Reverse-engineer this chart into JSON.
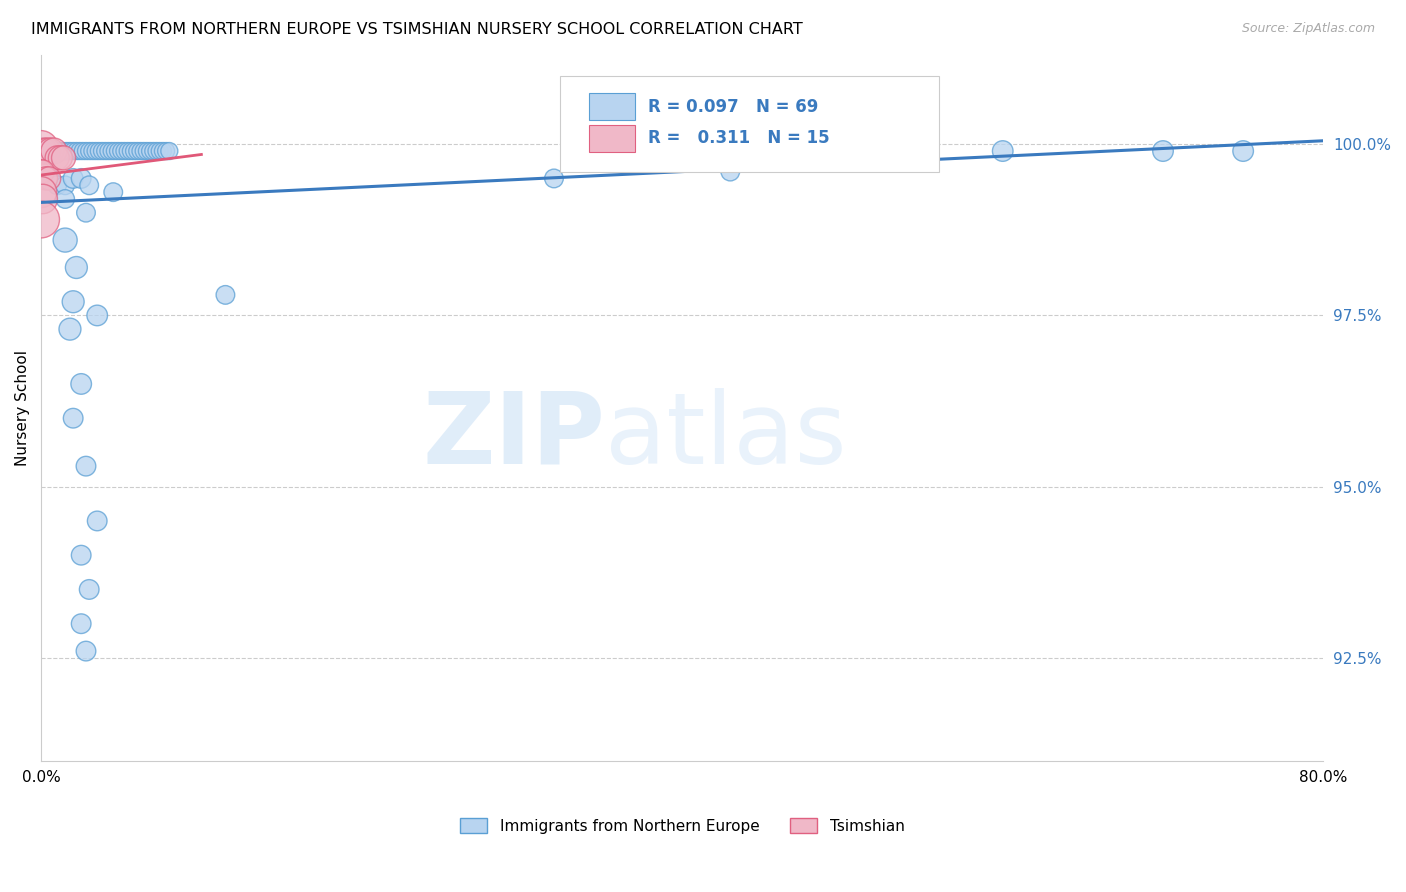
{
  "title": "IMMIGRANTS FROM NORTHERN EUROPE VS TSIMSHIAN NURSERY SCHOOL CORRELATION CHART",
  "source": "Source: ZipAtlas.com",
  "ylabel": "Nursery School",
  "xlim": [
    0.0,
    80.0
  ],
  "ylim": [
    91.0,
    101.3
  ],
  "yticks": [
    92.5,
    95.0,
    97.5,
    100.0
  ],
  "ytick_labels": [
    "92.5%",
    "95.0%",
    "97.5%",
    "100.0%"
  ],
  "xticks": [
    0.0,
    10.0,
    20.0,
    30.0,
    40.0,
    50.0,
    60.0,
    70.0,
    80.0
  ],
  "xtick_labels": [
    "0.0%",
    "",
    "",
    "",
    "",
    "",
    "",
    "",
    "80.0%"
  ],
  "watermark_zip": "ZIP",
  "watermark_atlas": "atlas",
  "legend_blue_label": "Immigrants from Northern Europe",
  "legend_pink_label": "Tsimshian",
  "R_blue": 0.097,
  "N_blue": 69,
  "R_pink": 0.311,
  "N_pink": 15,
  "blue_fill": "#b8d4f0",
  "blue_edge": "#5a9fd4",
  "pink_fill": "#f0b8c8",
  "pink_edge": "#e06080",
  "blue_line_color": "#3a7abf",
  "pink_line_color": "#e05878",
  "blue_trendline_x": [
    0.0,
    80.0
  ],
  "blue_trendline_y": [
    99.15,
    100.05
  ],
  "pink_trendline_x": [
    0.0,
    10.0
  ],
  "pink_trendline_y": [
    99.55,
    99.85
  ],
  "blue_scatter": [
    [
      0.0,
      99.95
    ],
    [
      0.2,
      99.9
    ],
    [
      0.5,
      99.9
    ],
    [
      0.8,
      99.9
    ],
    [
      1.0,
      99.9
    ],
    [
      1.2,
      99.9
    ],
    [
      1.4,
      99.9
    ],
    [
      1.6,
      99.9
    ],
    [
      1.8,
      99.9
    ],
    [
      2.0,
      99.9
    ],
    [
      2.2,
      99.9
    ],
    [
      2.4,
      99.9
    ],
    [
      2.6,
      99.9
    ],
    [
      2.8,
      99.9
    ],
    [
      3.0,
      99.9
    ],
    [
      3.2,
      99.9
    ],
    [
      3.4,
      99.9
    ],
    [
      3.6,
      99.9
    ],
    [
      3.8,
      99.9
    ],
    [
      4.0,
      99.9
    ],
    [
      4.2,
      99.9
    ],
    [
      4.4,
      99.9
    ],
    [
      4.6,
      99.9
    ],
    [
      4.8,
      99.9
    ],
    [
      5.0,
      99.9
    ],
    [
      5.2,
      99.9
    ],
    [
      5.4,
      99.9
    ],
    [
      5.6,
      99.9
    ],
    [
      5.8,
      99.9
    ],
    [
      6.0,
      99.9
    ],
    [
      6.2,
      99.9
    ],
    [
      6.4,
      99.9
    ],
    [
      6.6,
      99.9
    ],
    [
      6.8,
      99.9
    ],
    [
      7.0,
      99.9
    ],
    [
      7.2,
      99.9
    ],
    [
      7.4,
      99.9
    ],
    [
      7.6,
      99.9
    ],
    [
      7.8,
      99.9
    ],
    [
      8.0,
      99.9
    ],
    [
      0.5,
      99.5
    ],
    [
      1.0,
      99.4
    ],
    [
      1.5,
      99.4
    ],
    [
      2.0,
      99.5
    ],
    [
      2.5,
      99.5
    ],
    [
      3.0,
      99.4
    ],
    [
      4.5,
      99.3
    ],
    [
      1.5,
      99.2
    ],
    [
      2.8,
      99.0
    ],
    [
      1.5,
      98.6
    ],
    [
      2.2,
      98.2
    ],
    [
      2.0,
      97.7
    ],
    [
      1.8,
      97.3
    ],
    [
      3.5,
      97.5
    ],
    [
      2.5,
      96.5
    ],
    [
      2.0,
      96.0
    ],
    [
      2.8,
      95.3
    ],
    [
      3.5,
      94.5
    ],
    [
      2.5,
      94.0
    ],
    [
      3.0,
      93.5
    ],
    [
      2.5,
      93.0
    ],
    [
      2.8,
      92.6
    ],
    [
      11.5,
      97.8
    ],
    [
      32.0,
      99.5
    ],
    [
      43.0,
      99.6
    ],
    [
      50.0,
      99.9
    ],
    [
      60.0,
      99.9
    ],
    [
      70.0,
      99.9
    ],
    [
      75.0,
      99.9
    ]
  ],
  "blue_scatter_sizes": [
    180,
    150,
    150,
    150,
    150,
    150,
    150,
    150,
    150,
    150,
    150,
    150,
    150,
    150,
    150,
    150,
    150,
    150,
    150,
    150,
    150,
    150,
    150,
    150,
    150,
    150,
    150,
    150,
    150,
    150,
    150,
    150,
    150,
    150,
    150,
    150,
    150,
    150,
    150,
    150,
    200,
    180,
    180,
    200,
    200,
    180,
    180,
    180,
    180,
    300,
    250,
    250,
    250,
    220,
    220,
    200,
    200,
    200,
    200,
    200,
    200,
    200,
    180,
    180,
    180,
    200,
    220,
    220,
    220
  ],
  "pink_scatter": [
    [
      0.0,
      99.95
    ],
    [
      0.2,
      99.9
    ],
    [
      0.4,
      99.9
    ],
    [
      0.6,
      99.9
    ],
    [
      0.8,
      99.9
    ],
    [
      1.0,
      99.8
    ],
    [
      1.2,
      99.8
    ],
    [
      1.4,
      99.8
    ],
    [
      0.0,
      99.6
    ],
    [
      0.1,
      99.6
    ],
    [
      0.3,
      99.5
    ],
    [
      0.5,
      99.5
    ],
    [
      0.0,
      99.3
    ],
    [
      0.1,
      99.2
    ],
    [
      0.0,
      98.9
    ]
  ],
  "pink_scatter_sizes": [
    600,
    350,
    350,
    350,
    350,
    300,
    300,
    300,
    280,
    280,
    280,
    280,
    500,
    450,
    700
  ]
}
